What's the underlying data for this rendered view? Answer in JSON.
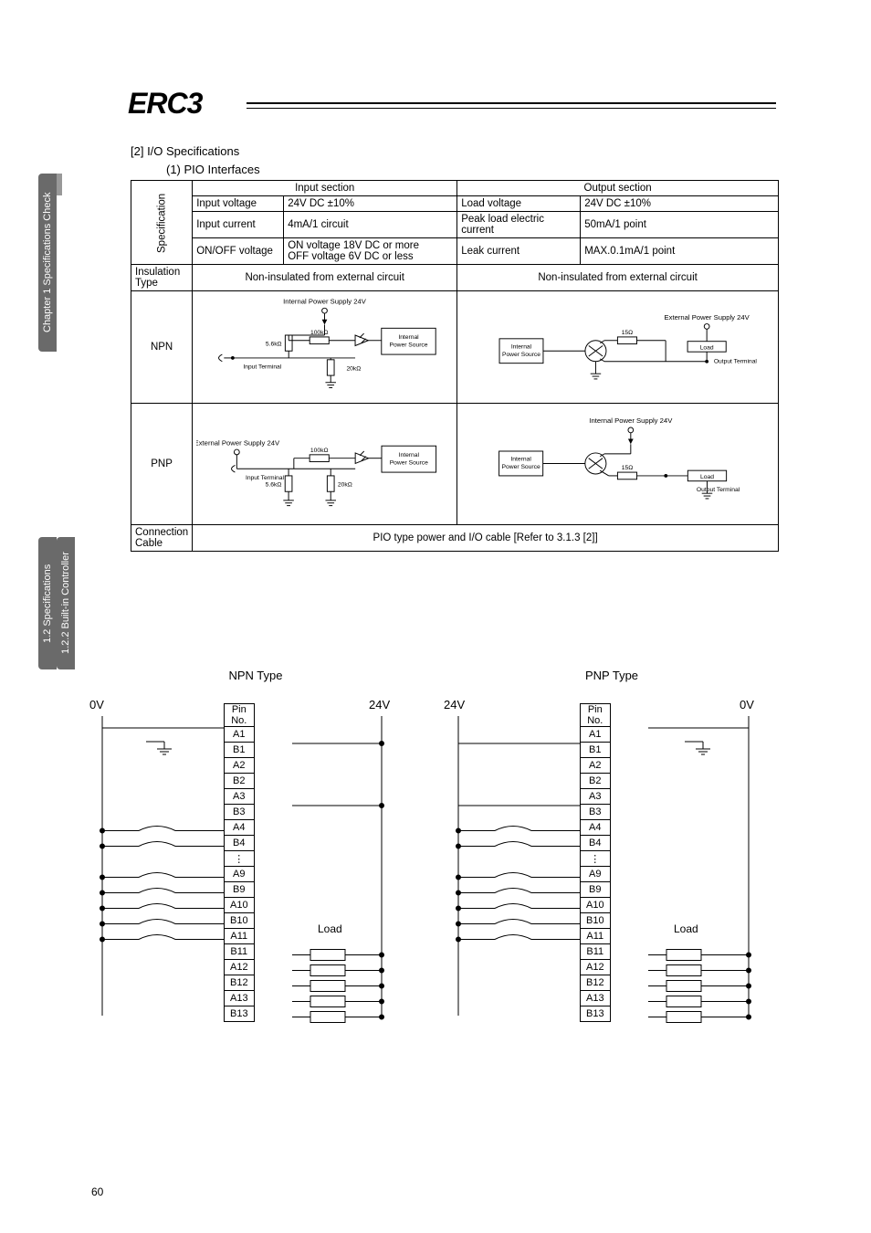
{
  "logo_text": "ERC3",
  "sidebar": {
    "top_label": "Chapter 1 Specifications Check",
    "bottom_label_1": "1.2 Specifications",
    "bottom_label_2": "1.2.2 Built-in Controller"
  },
  "headings": {
    "section": "[2] I/O Specifications",
    "sub": "(1) PIO Interfaces"
  },
  "spec_table": {
    "input_header": "Input section",
    "output_header": "Output section",
    "row_spec_label": "Specification",
    "rows_spec": [
      {
        "in_l": "Input voltage",
        "in_v": "24V DC ±10%",
        "out_l": "Load voltage",
        "out_v": "24V DC ±10%"
      },
      {
        "in_l": "Input current",
        "in_v": "4mA/1 circuit",
        "out_l": "Peak load electric current",
        "out_v": "50mA/1 point"
      },
      {
        "in_l": "ON/OFF voltage",
        "in_v": "ON voltage 18V DC or more\nOFF voltage 6V DC or less",
        "out_l": "Leak current",
        "out_v": "MAX.0.1mA/1 point"
      }
    ],
    "insulation_label": "Insulation Type",
    "insulation_value": "Non-insulated from external circuit",
    "npn_label": "NPN",
    "pnp_label": "PNP",
    "connection_label": "Connection Cable",
    "connection_value": "PIO type power and I/O cable [Refer to 3.1.3 [2]]",
    "diagrams": {
      "npn_in": {
        "ps": "Internal Power Supply 24V",
        "term": "Input Terminal",
        "r1": "5.6kΩ",
        "r2": "100kΩ",
        "r3": "20kΩ",
        "src": "Internal\nPower Source"
      },
      "npn_out": {
        "ps": "External Power Supply 24V",
        "r": "15Ω",
        "load": "Load",
        "term": "Output Terminal",
        "src": "Internal\nPower Source"
      },
      "pnp_in": {
        "ps": "External Power Supply 24V",
        "term": "Input Terminal",
        "r1": "5.6kΩ",
        "r2": "100kΩ",
        "r3": "20kΩ",
        "src": "Internal\nPower Source"
      },
      "pnp_out": {
        "ps": "Internal Power Supply 24V",
        "r": "15Ω",
        "load": "Load",
        "term": "Output Terminal",
        "src": "Internal\nPower Source"
      }
    }
  },
  "wiring": {
    "npn_title": "NPN Type",
    "pnp_title": "PNP Type",
    "zero_v": "0V",
    "v24": "24V",
    "pin_header": "Pin No.",
    "load_label": "Load",
    "pins": [
      "A1",
      "B1",
      "A2",
      "B2",
      "A3",
      "B3",
      "A4",
      "B4",
      "⋮",
      "A9",
      "B9",
      "A10",
      "B10",
      "A11",
      "B11",
      "A12",
      "B12",
      "A13",
      "B13"
    ]
  },
  "page_number": "60",
  "colors": {
    "text": "#000000",
    "sidebar": "#6a6a6a",
    "border": "#000000"
  }
}
